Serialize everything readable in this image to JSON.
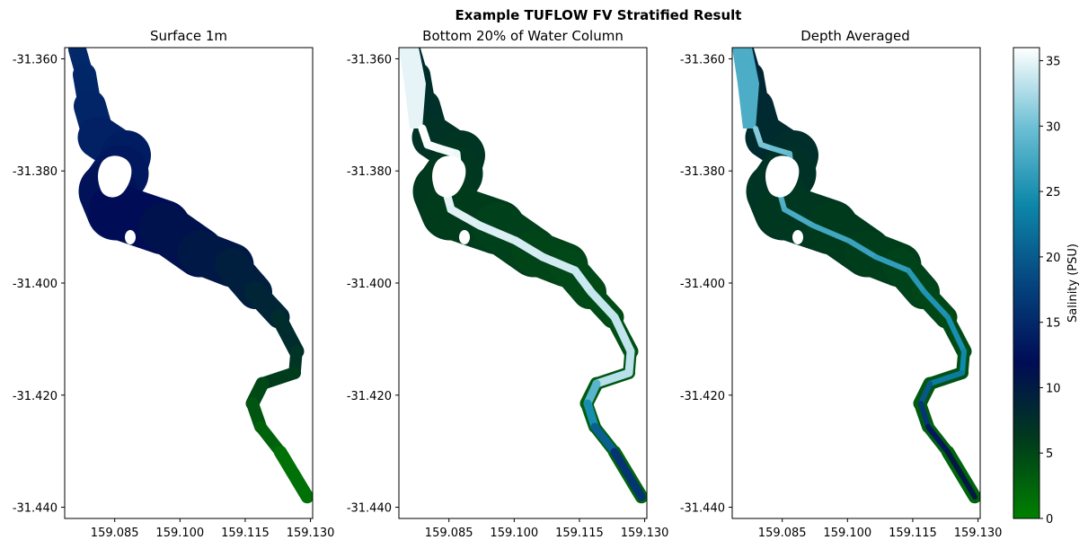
{
  "figure": {
    "title": "Example TUFLOW FV Stratified Result"
  },
  "chart_data": [
    {
      "type": "heatmap",
      "title": "Surface 1m",
      "xlim": [
        159.0735,
        159.1305
      ],
      "ylim": [
        -31.442,
        -31.358
      ],
      "xticks": [
        159.085,
        159.1,
        159.115,
        159.13
      ],
      "xtick_labels": [
        "159.085",
        "159.100",
        "159.115",
        "159.130"
      ],
      "yticks": [
        -31.36,
        -31.38,
        -31.4,
        -31.42,
        -31.44
      ],
      "ytick_labels": [
        "-31.360",
        "-31.380",
        "-31.400",
        "-31.420",
        "-31.440"
      ],
      "pattern": "surface",
      "salinity_range_psu": [
        0,
        15
      ]
    },
    {
      "type": "heatmap",
      "title": "Bottom 20% of Water Column",
      "xlim": [
        159.0735,
        159.1305
      ],
      "ylim": [
        -31.442,
        -31.358
      ],
      "xticks": [
        159.085,
        159.1,
        159.115,
        159.13
      ],
      "xtick_labels": [
        "159.085",
        "159.100",
        "159.115",
        "159.130"
      ],
      "yticks": [
        -31.36,
        -31.38,
        -31.4,
        -31.42,
        -31.44
      ],
      "ytick_labels": [
        "-31.360",
        "-31.380",
        "-31.400",
        "-31.420",
        "-31.440"
      ],
      "pattern": "bottom",
      "salinity_range_psu": [
        3,
        36
      ]
    },
    {
      "type": "heatmap",
      "title": "Depth Averaged",
      "xlim": [
        159.0735,
        159.1305
      ],
      "ylim": [
        -31.442,
        -31.358
      ],
      "xticks": [
        159.085,
        159.1,
        159.115,
        159.13
      ],
      "xtick_labels": [
        "159.085",
        "159.100",
        "159.115",
        "159.130"
      ],
      "yticks": [
        -31.36,
        -31.38,
        -31.4,
        -31.42,
        -31.44
      ],
      "ytick_labels": [
        "-31.360",
        "-31.380",
        "-31.400",
        "-31.420",
        "-31.440"
      ],
      "pattern": "average",
      "salinity_range_psu": [
        5,
        33
      ]
    }
  ],
  "colorbar": {
    "label": "Salinity (PSU)",
    "range": [
      0,
      36
    ],
    "ticks": [
      0,
      5,
      10,
      15,
      20,
      25,
      30,
      35
    ],
    "tick_labels": [
      "0",
      "5",
      "10",
      "15",
      "20",
      "25",
      "30",
      "35"
    ],
    "colormap": "ocean-like",
    "colors": [
      "#008000",
      "#003a1c",
      "#000c55",
      "#05457f",
      "#0e88aa",
      "#6cbfd4",
      "#ffffff"
    ]
  }
}
